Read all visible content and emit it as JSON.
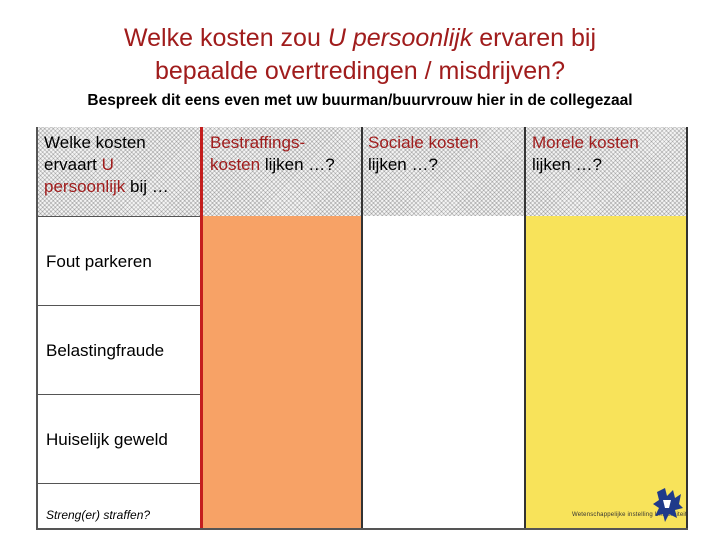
{
  "slide": {
    "title_part1": "Welke kosten zou ",
    "title_em": "U persoonlijk",
    "title_part2": " ervaren bij",
    "title_line2": "bepaalde overtredingen / misdrijven?",
    "subtitle": "Bespreek dit eens even met uw buurman/buurvrouw hier in de collegezaal"
  },
  "table": {
    "headers": {
      "col1": {
        "a": "Welke kosten",
        "b": "ervaart ",
        "c": "U",
        "d": "persoonlijk",
        "e": " bij …"
      },
      "col2": {
        "a": "Bestraffings-",
        "b": "kosten",
        "c": " lijken …?"
      },
      "col3": {
        "a": "Sociale kosten",
        "b": "lijken …?"
      },
      "col4": {
        "a": "Morele kosten",
        "b": "lijken …?"
      }
    },
    "rows": [
      "Fout parkeren",
      "Belastingfraude",
      "Huiselijk geweld"
    ]
  },
  "footer": {
    "note": "Streng(er) straffen?",
    "logo_text": "Wetenschappelijke instelling   Universiteit"
  },
  "colors": {
    "accent_red": "#a01c1c",
    "orange": "#f7a266",
    "yellow": "#f8e35a"
  },
  "icons": {
    "logo": "university-crest-icon"
  }
}
